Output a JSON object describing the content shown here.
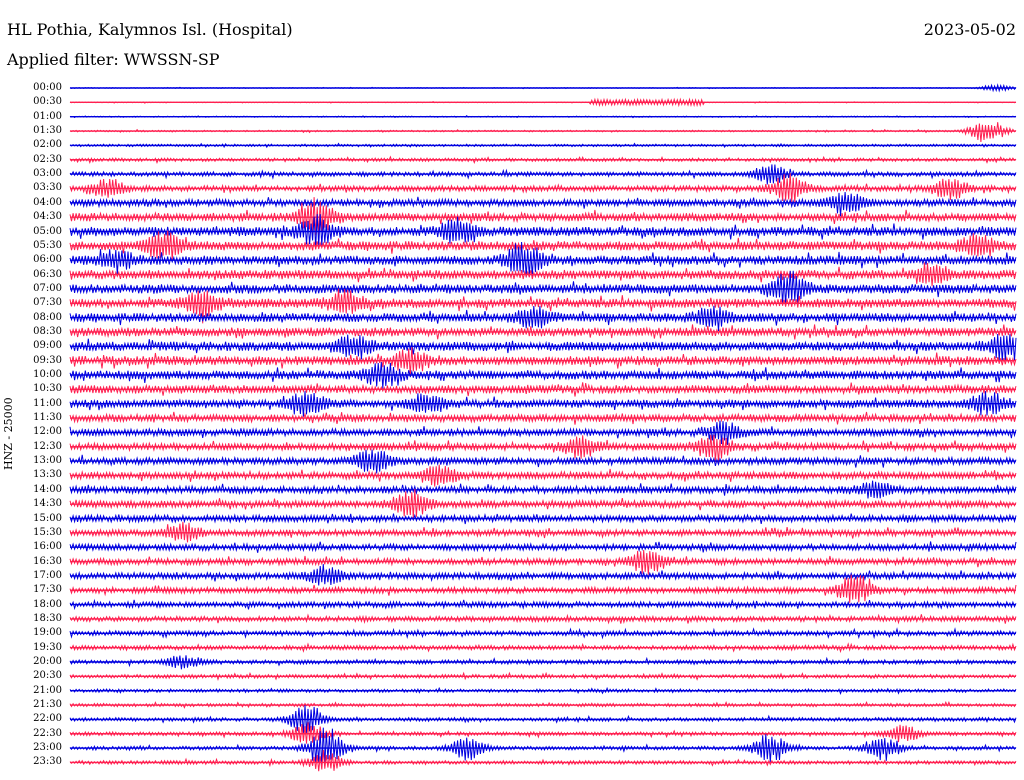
{
  "header": {
    "station": "HL Pothia, Kalymnos Isl. (Hospital)",
    "date": "2023-05-02",
    "filter": "Applied filter: WWSSN-SP"
  },
  "chart_data": {
    "type": "line",
    "title": "HL Pothia, Kalymnos Isl. (Hospital)",
    "subtitle": "Applied filter: WWSSN-SP",
    "date": "2023-05-02",
    "ylabel": "HNZ - 25000",
    "rows": [
      "00:00",
      "00:30",
      "01:00",
      "01:30",
      "02:00",
      "02:30",
      "03:00",
      "03:30",
      "04:00",
      "04:30",
      "05:00",
      "05:30",
      "06:00",
      "06:30",
      "07:00",
      "07:30",
      "08:00",
      "08:30",
      "09:00",
      "09:30",
      "10:00",
      "10:30",
      "11:00",
      "11:30",
      "12:00",
      "12:30",
      "13:00",
      "13:30",
      "14:00",
      "14:30",
      "15:00",
      "15:30",
      "16:00",
      "16:30",
      "17:00",
      "17:30",
      "18:00",
      "18:30",
      "19:00",
      "19:30",
      "20:00",
      "20:30",
      "21:00",
      "21:30",
      "22:00",
      "22:30",
      "23:00",
      "23:30"
    ],
    "colors": [
      "#0000e0",
      "#ff2050"
    ],
    "noise": [
      0.4,
      0.4,
      0.6,
      0.8,
      1.2,
      1.6,
      2.2,
      2.8,
      3.6,
      4.2,
      4.6,
      4.6,
      4.6,
      4.6,
      4.6,
      4.6,
      4.4,
      4.4,
      4.6,
      4.6,
      4.4,
      4.2,
      4.0,
      3.8,
      3.6,
      3.6,
      3.6,
      3.6,
      3.6,
      3.6,
      3.4,
      3.2,
      3.2,
      3.2,
      3.2,
      3.0,
      2.8,
      2.6,
      2.4,
      2.2,
      2.0,
      1.8,
      1.6,
      1.6,
      1.8,
      1.8,
      1.8,
      1.8
    ],
    "events": [
      {
        "row": 0,
        "t": 0.98,
        "amp": 3
      },
      {
        "row": 1,
        "t": 0.61,
        "amp": 3,
        "dur": 0.12
      },
      {
        "row": 3,
        "t": 0.97,
        "amp": 12
      },
      {
        "row": 6,
        "t": 0.74,
        "amp": 10
      },
      {
        "row": 7,
        "t": 0.76,
        "amp": 14
      },
      {
        "row": 7,
        "t": 0.93,
        "amp": 10
      },
      {
        "row": 7,
        "t": 0.04,
        "amp": 8
      },
      {
        "row": 8,
        "t": 0.82,
        "amp": 10
      },
      {
        "row": 9,
        "t": 0.26,
        "amp": 18
      },
      {
        "row": 10,
        "t": 0.26,
        "amp": 14
      },
      {
        "row": 10,
        "t": 0.41,
        "amp": 12
      },
      {
        "row": 11,
        "t": 0.1,
        "amp": 14
      },
      {
        "row": 11,
        "t": 0.96,
        "amp": 10
      },
      {
        "row": 12,
        "t": 0.05,
        "amp": 10
      },
      {
        "row": 12,
        "t": 0.48,
        "amp": 18
      },
      {
        "row": 13,
        "t": 0.91,
        "amp": 10
      },
      {
        "row": 14,
        "t": 0.76,
        "amp": 16
      },
      {
        "row": 15,
        "t": 0.14,
        "amp": 12
      },
      {
        "row": 15,
        "t": 0.29,
        "amp": 12
      },
      {
        "row": 16,
        "t": 0.49,
        "amp": 10
      },
      {
        "row": 16,
        "t": 0.68,
        "amp": 10
      },
      {
        "row": 18,
        "t": 0.3,
        "amp": 12
      },
      {
        "row": 18,
        "t": 0.99,
        "amp": 14
      },
      {
        "row": 19,
        "t": 0.36,
        "amp": 12
      },
      {
        "row": 20,
        "t": 0.33,
        "amp": 12
      },
      {
        "row": 22,
        "t": 0.25,
        "amp": 12
      },
      {
        "row": 22,
        "t": 0.38,
        "amp": 10
      },
      {
        "row": 22,
        "t": 0.97,
        "amp": 10
      },
      {
        "row": 24,
        "t": 0.69,
        "amp": 10
      },
      {
        "row": 25,
        "t": 0.68,
        "amp": 14
      },
      {
        "row": 25,
        "t": 0.54,
        "amp": 10
      },
      {
        "row": 26,
        "t": 0.32,
        "amp": 12
      },
      {
        "row": 27,
        "t": 0.39,
        "amp": 10
      },
      {
        "row": 28,
        "t": 0.85,
        "amp": 8
      },
      {
        "row": 29,
        "t": 0.36,
        "amp": 14
      },
      {
        "row": 31,
        "t": 0.12,
        "amp": 8
      },
      {
        "row": 33,
        "t": 0.61,
        "amp": 12
      },
      {
        "row": 34,
        "t": 0.27,
        "amp": 10
      },
      {
        "row": 35,
        "t": 0.83,
        "amp": 14
      },
      {
        "row": 40,
        "t": 0.12,
        "amp": 6
      },
      {
        "row": 44,
        "t": 0.25,
        "amp": 14
      },
      {
        "row": 45,
        "t": 0.25,
        "amp": 10
      },
      {
        "row": 45,
        "t": 0.88,
        "amp": 8
      },
      {
        "row": 46,
        "t": 0.27,
        "amp": 22
      },
      {
        "row": 46,
        "t": 0.42,
        "amp": 12
      },
      {
        "row": 46,
        "t": 0.74,
        "amp": 14
      },
      {
        "row": 46,
        "t": 0.86,
        "amp": 12
      },
      {
        "row": 47,
        "t": 0.27,
        "amp": 10
      }
    ]
  }
}
